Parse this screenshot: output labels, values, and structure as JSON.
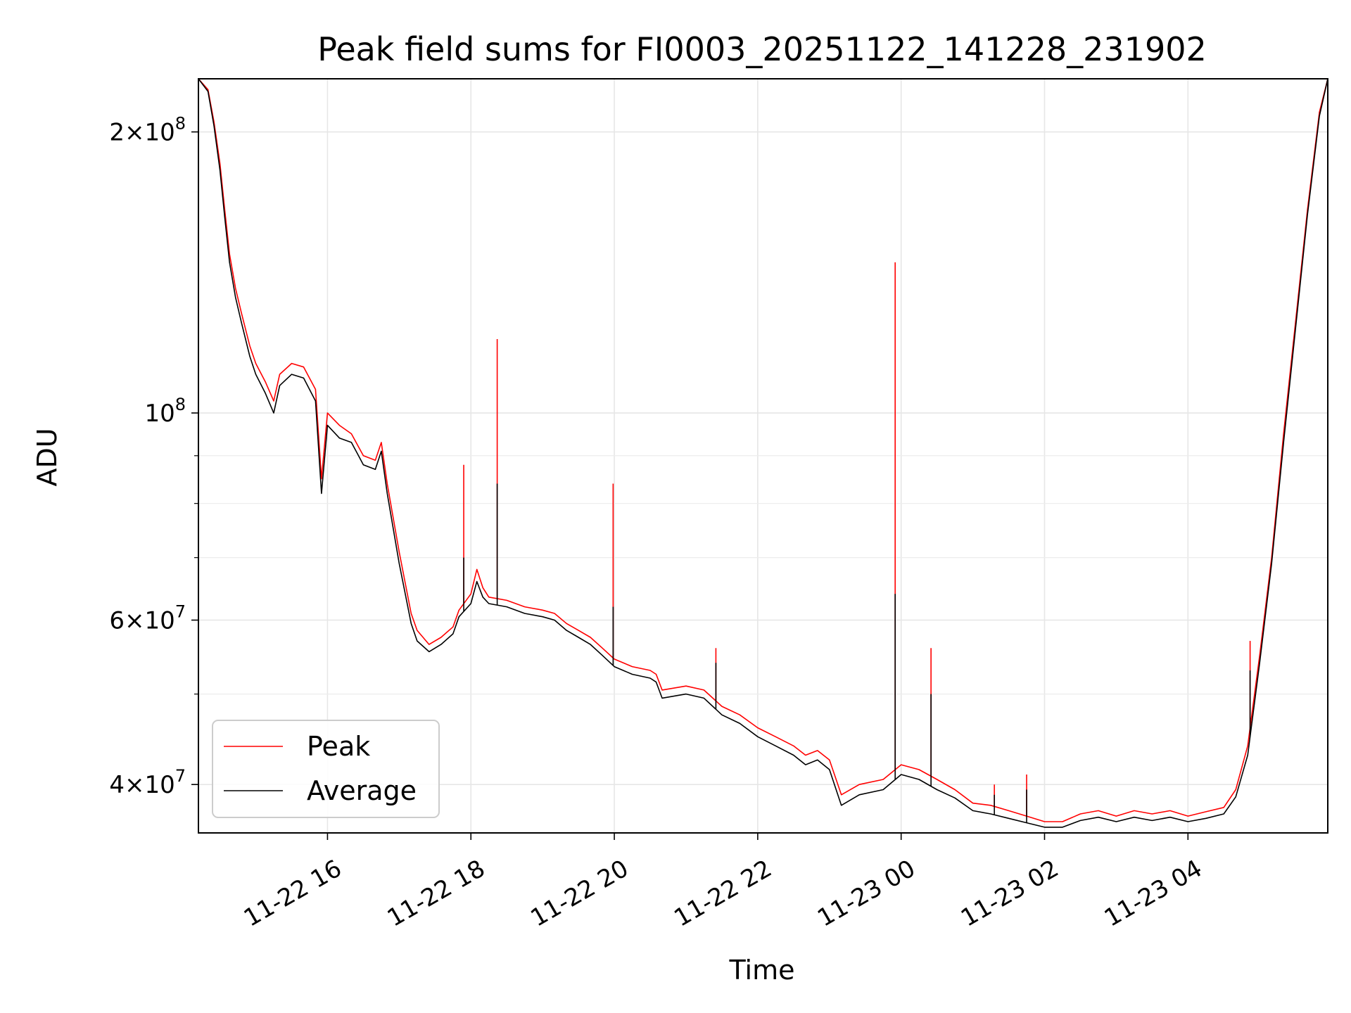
{
  "chart_data": {
    "type": "line",
    "title": "Peak field sums for FI0003_20251122_141228_231902",
    "xlabel": "Time",
    "ylabel": "ADU",
    "y_scale": "log",
    "ylim": [
      35500000,
      228000000
    ],
    "xlim": [
      "2025-11-22 14:12",
      "2025-11-23 05:57"
    ],
    "x_tick_labels": [
      "11-22 16",
      "11-22 18",
      "11-22 20",
      "11-22 22",
      "11-23 00",
      "11-23 02",
      "11-23 04"
    ],
    "x_tick_values": [
      "2025-11-22 16:00",
      "2025-11-22 18:00",
      "2025-11-22 20:00",
      "2025-11-22 22:00",
      "2025-11-23 00:00",
      "2025-11-23 02:00",
      "2025-11-23 04:00"
    ],
    "y_major_ticks": [
      {
        "value": 40000000,
        "mantissa": "4",
        "exponent": "7"
      },
      {
        "value": 60000000,
        "mantissa": "6",
        "exponent": "7"
      },
      {
        "value": 100000000,
        "mantissa": "",
        "exponent": "8"
      },
      {
        "value": 200000000,
        "mantissa": "2",
        "exponent": "8"
      }
    ],
    "y_minor_ticks": [
      50000000,
      70000000,
      80000000,
      90000000
    ],
    "grid": true,
    "legend_position": "lower-left",
    "series": [
      {
        "name": "Peak",
        "color": "#ff0000",
        "points": [
          [
            "2025-11-22 14:12",
            228000000
          ],
          [
            "2025-11-22 14:20",
            222000000
          ],
          [
            "2025-11-22 14:25",
            205000000
          ],
          [
            "2025-11-22 14:30",
            185000000
          ],
          [
            "2025-11-22 14:34",
            165000000
          ],
          [
            "2025-11-22 14:38",
            148000000
          ],
          [
            "2025-11-22 14:43",
            136000000
          ],
          [
            "2025-11-22 14:48",
            128000000
          ],
          [
            "2025-11-22 14:55",
            118000000
          ],
          [
            "2025-11-22 15:00",
            113000000
          ],
          [
            "2025-11-22 15:08",
            108000000
          ],
          [
            "2025-11-22 15:15",
            103000000
          ],
          [
            "2025-11-22 15:20",
            110000000
          ],
          [
            "2025-11-22 15:30",
            113000000
          ],
          [
            "2025-11-22 15:40",
            112000000
          ],
          [
            "2025-11-22 15:50",
            106000000
          ],
          [
            "2025-11-22 15:55",
            85000000
          ],
          [
            "2025-11-22 16:00",
            100000000
          ],
          [
            "2025-11-22 16:10",
            97000000
          ],
          [
            "2025-11-22 16:20",
            95000000
          ],
          [
            "2025-11-22 16:30",
            90000000
          ],
          [
            "2025-11-22 16:40",
            89000000
          ],
          [
            "2025-11-22 16:45",
            93000000
          ],
          [
            "2025-11-22 16:50",
            84000000
          ],
          [
            "2025-11-22 17:00",
            71000000
          ],
          [
            "2025-11-22 17:10",
            61000000
          ],
          [
            "2025-11-22 17:15",
            58500000
          ],
          [
            "2025-11-22 17:25",
            56500000
          ],
          [
            "2025-11-22 17:35",
            57500000
          ],
          [
            "2025-11-22 17:45",
            59000000
          ],
          [
            "2025-11-22 17:50",
            61500000
          ],
          [
            "2025-11-22 18:00",
            64000000
          ],
          [
            "2025-11-22 18:05",
            68000000
          ],
          [
            "2025-11-22 18:10",
            65000000
          ],
          [
            "2025-11-22 18:15",
            63500000
          ],
          [
            "2025-11-22 18:30",
            63000000
          ],
          [
            "2025-11-22 18:45",
            62000000
          ],
          [
            "2025-11-22 19:00",
            61500000
          ],
          [
            "2025-11-22 19:10",
            61000000
          ],
          [
            "2025-11-22 19:20",
            59500000
          ],
          [
            "2025-11-22 19:30",
            58500000
          ],
          [
            "2025-11-22 19:40",
            57500000
          ],
          [
            "2025-11-22 19:50",
            56000000
          ],
          [
            "2025-11-22 20:00",
            54500000
          ],
          [
            "2025-11-22 20:15",
            53500000
          ],
          [
            "2025-11-22 20:30",
            53000000
          ],
          [
            "2025-11-22 20:35",
            52500000
          ],
          [
            "2025-11-22 20:40",
            50500000
          ],
          [
            "2025-11-22 21:00",
            51000000
          ],
          [
            "2025-11-22 21:15",
            50500000
          ],
          [
            "2025-11-22 21:30",
            48500000
          ],
          [
            "2025-11-22 21:45",
            47500000
          ],
          [
            "2025-11-22 22:00",
            46000000
          ],
          [
            "2025-11-22 22:15",
            45000000
          ],
          [
            "2025-11-22 22:30",
            44000000
          ],
          [
            "2025-11-22 22:40",
            43000000
          ],
          [
            "2025-11-22 22:50",
            43500000
          ],
          [
            "2025-11-22 23:00",
            42500000
          ],
          [
            "2025-11-22 23:10",
            39000000
          ],
          [
            "2025-11-22 23:25",
            40000000
          ],
          [
            "2025-11-22 23:45",
            40500000
          ],
          [
            "2025-11-23 00:00",
            42000000
          ],
          [
            "2025-11-23 00:15",
            41500000
          ],
          [
            "2025-11-23 00:30",
            40500000
          ],
          [
            "2025-11-23 00:45",
            39500000
          ],
          [
            "2025-11-23 01:00",
            38200000
          ],
          [
            "2025-11-23 01:15",
            38000000
          ],
          [
            "2025-11-23 01:30",
            37500000
          ],
          [
            "2025-11-23 01:45",
            37000000
          ],
          [
            "2025-11-23 02:00",
            36500000
          ],
          [
            "2025-11-23 02:15",
            36500000
          ],
          [
            "2025-11-23 02:30",
            37200000
          ],
          [
            "2025-11-23 02:45",
            37500000
          ],
          [
            "2025-11-23 03:00",
            37000000
          ],
          [
            "2025-11-23 03:15",
            37500000
          ],
          [
            "2025-11-23 03:30",
            37200000
          ],
          [
            "2025-11-23 03:45",
            37500000
          ],
          [
            "2025-11-23 04:00",
            37000000
          ],
          [
            "2025-11-23 04:15",
            37400000
          ],
          [
            "2025-11-23 04:30",
            37800000
          ],
          [
            "2025-11-23 04:40",
            39500000
          ],
          [
            "2025-11-23 04:50",
            44000000
          ],
          [
            "2025-11-23 05:00",
            55000000
          ],
          [
            "2025-11-23 05:10",
            70000000
          ],
          [
            "2025-11-23 05:20",
            95000000
          ],
          [
            "2025-11-23 05:30",
            125000000
          ],
          [
            "2025-11-23 05:40",
            165000000
          ],
          [
            "2025-11-23 05:50",
            210000000
          ],
          [
            "2025-11-23 05:57",
            228000000
          ]
        ]
      },
      {
        "name": "Average",
        "color": "#000000",
        "points": [
          [
            "2025-11-22 14:12",
            228000000
          ],
          [
            "2025-11-22 14:20",
            221000000
          ],
          [
            "2025-11-22 14:25",
            203000000
          ],
          [
            "2025-11-22 14:30",
            182000000
          ],
          [
            "2025-11-22 14:34",
            162000000
          ],
          [
            "2025-11-22 14:38",
            145000000
          ],
          [
            "2025-11-22 14:43",
            133000000
          ],
          [
            "2025-11-22 14:48",
            125000000
          ],
          [
            "2025-11-22 14:55",
            115000000
          ],
          [
            "2025-11-22 15:00",
            110000000
          ],
          [
            "2025-11-22 15:08",
            105000000
          ],
          [
            "2025-11-22 15:15",
            100000000
          ],
          [
            "2025-11-22 15:20",
            107000000
          ],
          [
            "2025-11-22 15:30",
            110000000
          ],
          [
            "2025-11-22 15:40",
            109000000
          ],
          [
            "2025-11-22 15:50",
            103000000
          ],
          [
            "2025-11-22 15:55",
            82000000
          ],
          [
            "2025-11-22 16:00",
            97000000
          ],
          [
            "2025-11-22 16:10",
            94000000
          ],
          [
            "2025-11-22 16:20",
            93000000
          ],
          [
            "2025-11-22 16:30",
            88000000
          ],
          [
            "2025-11-22 16:40",
            87000000
          ],
          [
            "2025-11-22 16:45",
            91000000
          ],
          [
            "2025-11-22 16:50",
            82000000
          ],
          [
            "2025-11-22 17:00",
            69000000
          ],
          [
            "2025-11-22 17:10",
            59500000
          ],
          [
            "2025-11-22 17:15",
            57000000
          ],
          [
            "2025-11-22 17:25",
            55500000
          ],
          [
            "2025-11-22 17:35",
            56500000
          ],
          [
            "2025-11-22 17:45",
            58000000
          ],
          [
            "2025-11-22 17:50",
            60500000
          ],
          [
            "2025-11-22 18:00",
            62500000
          ],
          [
            "2025-11-22 18:05",
            66000000
          ],
          [
            "2025-11-22 18:10",
            63500000
          ],
          [
            "2025-11-22 18:15",
            62500000
          ],
          [
            "2025-11-22 18:30",
            62000000
          ],
          [
            "2025-11-22 18:45",
            61000000
          ],
          [
            "2025-11-22 19:00",
            60500000
          ],
          [
            "2025-11-22 19:10",
            60000000
          ],
          [
            "2025-11-22 19:20",
            58500000
          ],
          [
            "2025-11-22 19:30",
            57500000
          ],
          [
            "2025-11-22 19:40",
            56500000
          ],
          [
            "2025-11-22 19:50",
            55000000
          ],
          [
            "2025-11-22 20:00",
            53500000
          ],
          [
            "2025-11-22 20:15",
            52500000
          ],
          [
            "2025-11-22 20:30",
            52000000
          ],
          [
            "2025-11-22 20:35",
            51500000
          ],
          [
            "2025-11-22 20:40",
            49500000
          ],
          [
            "2025-11-22 21:00",
            50000000
          ],
          [
            "2025-11-22 21:15",
            49500000
          ],
          [
            "2025-11-22 21:30",
            47500000
          ],
          [
            "2025-11-22 21:45",
            46500000
          ],
          [
            "2025-11-22 22:00",
            45000000
          ],
          [
            "2025-11-22 22:15",
            44000000
          ],
          [
            "2025-11-22 22:30",
            43000000
          ],
          [
            "2025-11-22 22:40",
            42000000
          ],
          [
            "2025-11-22 22:50",
            42500000
          ],
          [
            "2025-11-22 23:00",
            41500000
          ],
          [
            "2025-11-22 23:10",
            38000000
          ],
          [
            "2025-11-22 23:25",
            39000000
          ],
          [
            "2025-11-22 23:45",
            39500000
          ],
          [
            "2025-11-23 00:00",
            41000000
          ],
          [
            "2025-11-23 00:15",
            40500000
          ],
          [
            "2025-11-23 00:30",
            39500000
          ],
          [
            "2025-11-23 00:45",
            38700000
          ],
          [
            "2025-11-23 01:00",
            37500000
          ],
          [
            "2025-11-23 01:15",
            37200000
          ],
          [
            "2025-11-23 01:30",
            36800000
          ],
          [
            "2025-11-23 01:45",
            36400000
          ],
          [
            "2025-11-23 02:00",
            36000000
          ],
          [
            "2025-11-23 02:15",
            36000000
          ],
          [
            "2025-11-23 02:30",
            36600000
          ],
          [
            "2025-11-23 02:45",
            36900000
          ],
          [
            "2025-11-23 03:00",
            36500000
          ],
          [
            "2025-11-23 03:15",
            36900000
          ],
          [
            "2025-11-23 03:30",
            36600000
          ],
          [
            "2025-11-23 03:45",
            36900000
          ],
          [
            "2025-11-23 04:00",
            36500000
          ],
          [
            "2025-11-23 04:15",
            36800000
          ],
          [
            "2025-11-23 04:30",
            37200000
          ],
          [
            "2025-11-23 04:40",
            38800000
          ],
          [
            "2025-11-23 04:50",
            43000000
          ],
          [
            "2025-11-23 05:00",
            54000000
          ],
          [
            "2025-11-23 05:10",
            69000000
          ],
          [
            "2025-11-23 05:20",
            93000000
          ],
          [
            "2025-11-23 05:30",
            123000000
          ],
          [
            "2025-11-23 05:40",
            163000000
          ],
          [
            "2025-11-23 05:50",
            208000000
          ],
          [
            "2025-11-23 05:57",
            228000000
          ]
        ]
      }
    ],
    "spikes": [
      {
        "time": "2025-11-22 17:54",
        "peak": 88000000,
        "average": 70000000
      },
      {
        "time": "2025-11-22 18:22",
        "peak": 120000000,
        "average": 84000000
      },
      {
        "time": "2025-11-22 19:59",
        "peak": 84000000,
        "average": 62000000
      },
      {
        "time": "2025-11-22 21:25",
        "peak": 56000000,
        "average": 54000000
      },
      {
        "time": "2025-11-22 23:55",
        "peak": 145000000,
        "average": 64000000
      },
      {
        "time": "2025-11-23 00:25",
        "peak": 56000000,
        "average": 50000000
      },
      {
        "time": "2025-11-23 01:18",
        "peak": 40000000,
        "average": 39000000
      },
      {
        "time": "2025-11-23 01:45",
        "peak": 41000000,
        "average": 39500000
      },
      {
        "time": "2025-11-23 04:52",
        "peak": 57000000,
        "average": 53000000
      }
    ]
  }
}
